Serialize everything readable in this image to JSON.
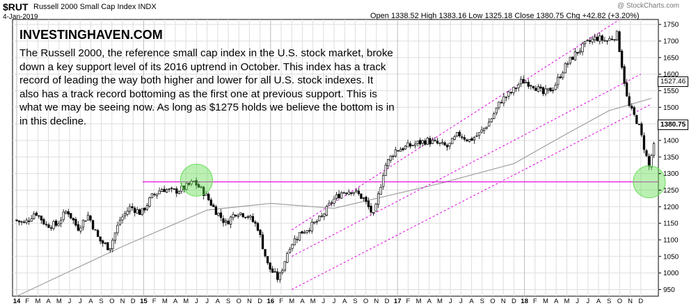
{
  "header": {
    "symbol": "$RUT",
    "title": "Russell 2000 Small Cap Index INDX",
    "date": "4-Jan-2019",
    "watermark": "@ StockCharts.com",
    "ohlc": "Open 1338.52  High 1383.16  Low 1325.18  Close 1380.75  Chg +42.82 (+3.20%)"
  },
  "annotation": {
    "brand": "INVESTINGHAVEN.COM",
    "text": "The Russell 2000, the reference small cap index in the U.S. stock market, broke down a key support level of its 2016 uptrend in October. This index has a track record of leading the way both higher and lower for all U.S. stock indexes. It also has a track record bottoming as the first one at previous support. This is what we may be seeing now. As long as $1275 holds we believe the bottom is in in this decline."
  },
  "labels": {
    "last_price": "1380.75",
    "sma_value": "1527.46"
  },
  "colors": {
    "candle": "#000000",
    "support": "#e000e0",
    "channel": "#e000e0",
    "sma": "#a0a0a0",
    "highlight": "#66dd55",
    "grid": "#dddddd"
  },
  "chart_data": {
    "type": "candlestick",
    "title": "Russell 2000 Small Cap Index",
    "y_ticks": [
      950,
      1000,
      1050,
      1100,
      1150,
      1200,
      1250,
      1300,
      1350,
      1400,
      1450,
      1500,
      1550,
      1600,
      1650,
      1700,
      1750
    ],
    "ylim": [
      930,
      1765
    ],
    "x_tick_labels": [
      "14",
      "F",
      "M",
      "A",
      "M",
      "J",
      "J",
      "A",
      "S",
      "O",
      "N",
      "D",
      "15",
      "F",
      "M",
      "A",
      "M",
      "J",
      "J",
      "A",
      "S",
      "O",
      "N",
      "D",
      "16",
      "F",
      "M",
      "A",
      "M",
      "J",
      "J",
      "A",
      "S",
      "O",
      "N",
      "D",
      "17",
      "F",
      "M",
      "A",
      "M",
      "J",
      "J",
      "A",
      "S",
      "O",
      "N",
      "D",
      "18",
      "F",
      "M",
      "A",
      "M",
      "J",
      "J",
      "A",
      "S",
      "O",
      "N",
      "D"
    ],
    "year_labels": [
      "14",
      "15",
      "16",
      "17",
      "18"
    ],
    "price_path": [
      [
        0,
        1160
      ],
      [
        1,
        1150
      ],
      [
        2,
        1185
      ],
      [
        3,
        1145
      ],
      [
        4,
        1145
      ],
      [
        5,
        1190
      ],
      [
        6,
        1135
      ],
      [
        7,
        1175
      ],
      [
        8,
        1100
      ],
      [
        9,
        1075
      ],
      [
        10,
        1160
      ],
      [
        11,
        1200
      ],
      [
        12,
        1180
      ],
      [
        13,
        1230
      ],
      [
        14,
        1255
      ],
      [
        15,
        1245
      ],
      [
        16,
        1255
      ],
      [
        17,
        1275
      ],
      [
        18,
        1240
      ],
      [
        19,
        1190
      ],
      [
        20,
        1150
      ],
      [
        21,
        1185
      ],
      [
        22,
        1175
      ],
      [
        23,
        1140
      ],
      [
        24,
        1020
      ],
      [
        25,
        980
      ],
      [
        26,
        1080
      ],
      [
        27,
        1120
      ],
      [
        28,
        1140
      ],
      [
        29,
        1165
      ],
      [
        30,
        1215
      ],
      [
        31,
        1245
      ],
      [
        32,
        1250
      ],
      [
        33,
        1225
      ],
      [
        34,
        1170
      ],
      [
        35,
        1320
      ],
      [
        36,
        1370
      ],
      [
        37,
        1380
      ],
      [
        38,
        1390
      ],
      [
        39,
        1400
      ],
      [
        40,
        1390
      ],
      [
        41,
        1380
      ],
      [
        42,
        1420
      ],
      [
        43,
        1400
      ],
      [
        44,
        1420
      ],
      [
        45,
        1460
      ],
      [
        46,
        1520
      ],
      [
        47,
        1545
      ],
      [
        48,
        1580
      ],
      [
        49,
        1570
      ],
      [
        50,
        1540
      ],
      [
        51,
        1560
      ],
      [
        52,
        1620
      ],
      [
        53,
        1660
      ],
      [
        54,
        1690
      ],
      [
        55,
        1710
      ],
      [
        56,
        1700
      ],
      [
        57,
        1720
      ],
      [
        58,
        1510
      ],
      [
        59,
        1450
      ],
      [
        60,
        1320
      ],
      [
        60.4,
        1380
      ]
    ],
    "support_level": 1275,
    "sma_path": [
      [
        0,
        930
      ],
      [
        10,
        1080
      ],
      [
        18,
        1190
      ],
      [
        24,
        1210
      ],
      [
        30,
        1195
      ],
      [
        40,
        1270
      ],
      [
        47,
        1330
      ],
      [
        52,
        1420
      ],
      [
        56,
        1490
      ],
      [
        60,
        1527
      ]
    ],
    "channel_lines": [
      {
        "from": [
          26,
          1130
        ],
        "to": [
          57,
          1765
        ]
      },
      {
        "from": [
          26,
          1050
        ],
        "to": [
          59,
          1600
        ]
      },
      {
        "from": [
          26,
          950
        ],
        "to": [
          60,
          1510
        ]
      }
    ],
    "highlights": [
      {
        "x": 17,
        "y": 1280
      },
      {
        "x": 59.8,
        "y": 1275
      }
    ],
    "last_close": 1380.75,
    "sma_last": 1527.46
  }
}
